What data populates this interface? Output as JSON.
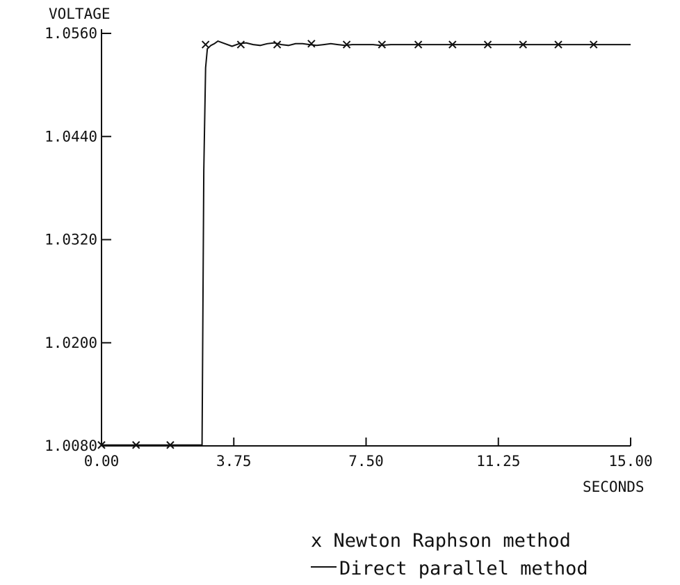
{
  "chart_data": {
    "type": "line",
    "title": "",
    "xlabel": "SECONDS",
    "ylabel": "VOLTAGE",
    "xlim": [
      0,
      15
    ],
    "ylim": [
      1.008,
      1.056
    ],
    "x_ticks": [
      0,
      3.75,
      7.5,
      11.25,
      15
    ],
    "x_tick_labels": [
      "0.00",
      "3.75",
      "7.50",
      "11.25",
      "15.00"
    ],
    "y_ticks": [
      1.008,
      1.02,
      1.032,
      1.044,
      1.056
    ],
    "y_tick_labels": [
      "1.0080",
      "1.0200",
      "1.0320",
      "1.0440",
      "1.0560"
    ],
    "grid": false,
    "legend_position": "bottom-right",
    "series": [
      {
        "name": "Direct parallel method",
        "style": "line",
        "color": "#111111",
        "x": [
          0,
          2.85,
          2.9,
          2.95,
          3.0,
          3.1,
          3.2,
          3.3,
          3.5,
          3.7,
          3.9,
          4.1,
          4.3,
          4.5,
          4.7,
          4.9,
          5.1,
          5.3,
          5.5,
          5.7,
          5.9,
          6.1,
          6.3,
          6.5,
          6.7,
          6.9,
          7.1,
          7.3,
          7.5,
          7.7,
          7.9,
          8.2,
          8.6,
          9.0,
          9.5,
          10.0,
          11.0,
          12.0,
          13.0,
          14.0,
          15.0
        ],
        "y": [
          1.0081,
          1.0081,
          1.04,
          1.052,
          1.0542,
          1.0546,
          1.0548,
          1.0551,
          1.0548,
          1.0545,
          1.0548,
          1.0549,
          1.0547,
          1.0546,
          1.0548,
          1.0549,
          1.0547,
          1.0546,
          1.0548,
          1.0548,
          1.0547,
          1.0546,
          1.0547,
          1.0548,
          1.0547,
          1.0546,
          1.0547,
          1.0547,
          1.0547,
          1.0547,
          1.0546,
          1.0547,
          1.0547,
          1.0547,
          1.0547,
          1.0547,
          1.0547,
          1.0547,
          1.0547,
          1.0547,
          1.0547
        ]
      },
      {
        "name": "Newton Raphson method",
        "style": "marker-x",
        "color": "#111111",
        "x": [
          0,
          0.98,
          1.95,
          2.95,
          3.95,
          4.98,
          5.95,
          6.95,
          7.95,
          8.98,
          9.95,
          10.95,
          11.95,
          12.95,
          13.95
        ],
        "y": [
          1.0081,
          1.0081,
          1.0081,
          1.0547,
          1.0547,
          1.0547,
          1.0548,
          1.0547,
          1.0547,
          1.0547,
          1.0547,
          1.0547,
          1.0547,
          1.0547,
          1.0547
        ]
      }
    ]
  },
  "legend": {
    "newton_label": "x Newton Raphson method",
    "direct_label": "Direct parallel method"
  }
}
